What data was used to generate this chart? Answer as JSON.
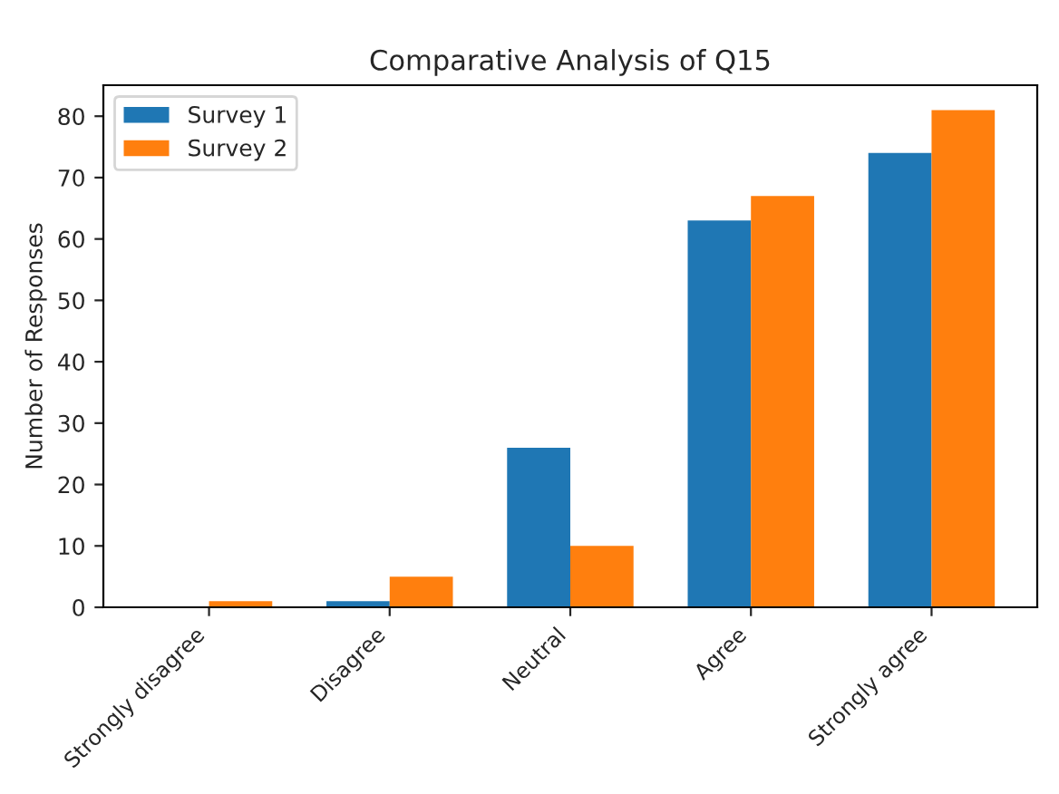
{
  "chart_data": {
    "type": "bar",
    "title": "Comparative Analysis of Q15",
    "ylabel": "Number of Responses",
    "categories": [
      "Strongly disagree",
      "Disagree",
      "Neutral",
      "Agree",
      "Strongly agree"
    ],
    "series": [
      {
        "name": "Survey 1",
        "color": "#1f77b4",
        "values": [
          0,
          1,
          26,
          63,
          74
        ]
      },
      {
        "name": "Survey 2",
        "color": "#ff7f0e",
        "values": [
          1,
          5,
          10,
          67,
          81
        ]
      }
    ],
    "ylim": [
      0,
      85.05
    ],
    "yticks": [
      0,
      10,
      20,
      30,
      40,
      50,
      60,
      70,
      80
    ],
    "legend": "top left",
    "grid": false
  }
}
